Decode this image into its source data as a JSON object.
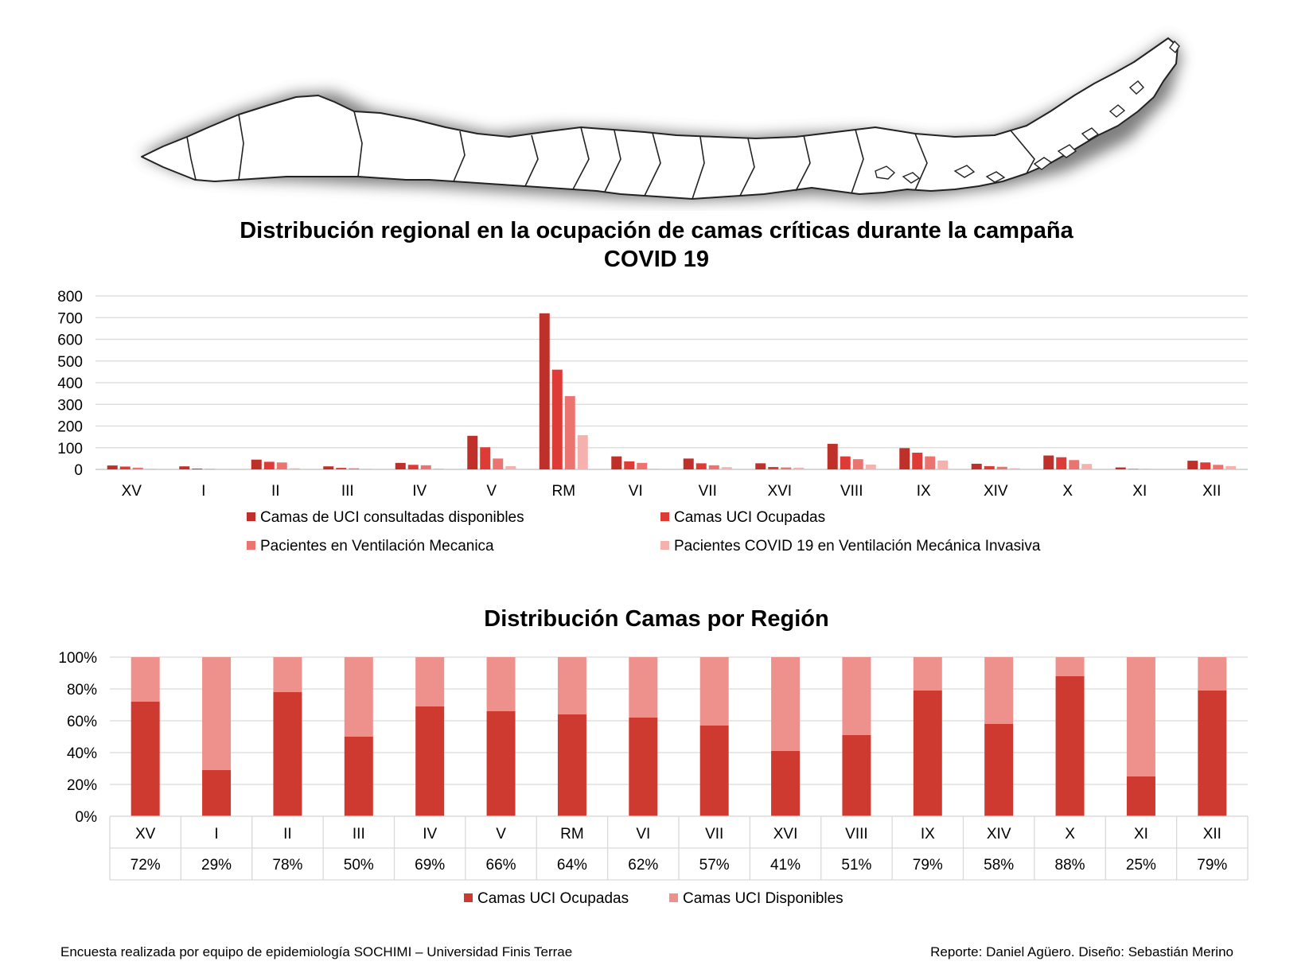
{
  "chart_data": [
    {
      "type": "bar",
      "title_lines": [
        "Distribución regional en la ocupación de camas críticas durante la campaña",
        "COVID 19"
      ],
      "categories": [
        "XV",
        "I",
        "II",
        "III",
        "IV",
        "V",
        "RM",
        "VI",
        "VII",
        "XVI",
        "VIII",
        "IX",
        "XIV",
        "X",
        "XI",
        "XII"
      ],
      "series": [
        {
          "name": "Camas de UCI consultadas disponibles",
          "color": "#c0302b",
          "values": [
            18,
            14,
            45,
            14,
            30,
            155,
            720,
            60,
            50,
            28,
            118,
            98,
            26,
            64,
            9,
            40
          ]
        },
        {
          "name": "Camas UCI Ocupadas",
          "color": "#de3a36",
          "values": [
            13,
            4,
            35,
            7,
            21,
            102,
            460,
            37,
            28,
            11,
            60,
            77,
            15,
            56,
            2,
            32
          ]
        },
        {
          "name": "Pacientes en Ventilación Mecanica",
          "color": "#ec7470",
          "values": [
            8,
            2,
            32,
            5,
            19,
            50,
            338,
            30,
            19,
            9,
            47,
            60,
            12,
            43,
            1,
            21
          ]
        },
        {
          "name": "Pacientes COVID 19 en Ventilación Mecánica Invasiva",
          "color": "#f4b1ae",
          "values": [
            3,
            1,
            5,
            3,
            4,
            15,
            158,
            3,
            10,
            8,
            22,
            41,
            5,
            25,
            0,
            15
          ]
        }
      ],
      "ylim": [
        0,
        800
      ],
      "yticks": [
        "0",
        "100",
        "200",
        "300",
        "400",
        "500",
        "600",
        "700",
        "800"
      ],
      "grid": true,
      "legend": "bottom"
    },
    {
      "type": "bar",
      "stacked": true,
      "percent": true,
      "title": "Distribución Camas por Región",
      "categories": [
        "XV",
        "I",
        "II",
        "III",
        "IV",
        "V",
        "RM",
        "VI",
        "VII",
        "XVI",
        "VIII",
        "IX",
        "XIV",
        "X",
        "XI",
        "XII"
      ],
      "series": [
        {
          "name": "Camas UCI Ocupadas",
          "color": "#cf3a30",
          "values": [
            72,
            29,
            78,
            50,
            69,
            66,
            64,
            62,
            57,
            41,
            51,
            79,
            58,
            88,
            25,
            79
          ]
        },
        {
          "name": "Camas UCI Disponibles",
          "color": "#ee918d",
          "values": [
            28,
            71,
            22,
            50,
            31,
            34,
            36,
            38,
            43,
            59,
            49,
            21,
            42,
            12,
            75,
            21
          ]
        }
      ],
      "table_row": [
        "72%",
        "29%",
        "78%",
        "50%",
        "69%",
        "66%",
        "64%",
        "62%",
        "57%",
        "41%",
        "51%",
        "79%",
        "58%",
        "88%",
        "25%",
        "79%"
      ],
      "ylim": [
        0,
        100
      ],
      "yticks": [
        "0%",
        "20%",
        "40%",
        "60%",
        "80%",
        "100%"
      ],
      "grid": true,
      "legend": "bottom"
    }
  ],
  "footer": {
    "left": "Encuesta realizada por equipo de epidemiología SOCHIMI – Universidad Finis Terrae",
    "right": "Reporte: Daniel Agüero. Diseño: Sebastián Merino"
  }
}
